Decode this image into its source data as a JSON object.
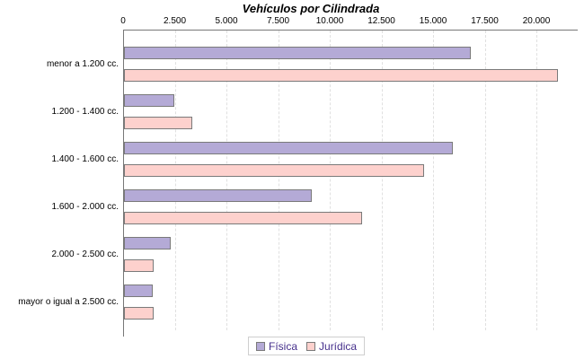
{
  "chart_data": {
    "type": "bar",
    "orientation": "horizontal",
    "title": "Vehículos por Cilindrada",
    "categories": [
      "menor a 1.200 cc.",
      "1.200 - 1.400 cc.",
      "1.400 - 1.600 cc.",
      "1.600 - 2.000 cc.",
      "2.000 - 2.500 cc.",
      "mayor o igual a 2.500 cc."
    ],
    "series": [
      {
        "name": "Física",
        "color": "#b4aad6",
        "values": [
          16800,
          2450,
          15900,
          9100,
          2250,
          1400
        ]
      },
      {
        "name": "Jurídica",
        "color": "#fdd1cd",
        "values": [
          21000,
          3300,
          14500,
          11500,
          1450,
          1450
        ]
      }
    ],
    "x_axis": {
      "position": "top",
      "ticks": [
        0,
        2500,
        5000,
        7500,
        10000,
        12500,
        15000,
        17500,
        20000
      ],
      "tick_labels": [
        "0",
        "2.500",
        "5.000",
        "7.500",
        "10.000",
        "12.500",
        "15.000",
        "17.500",
        "20.000"
      ],
      "xlim": [
        0,
        22000
      ],
      "grid": "dashed-vertical"
    },
    "legend": {
      "position": "bottom"
    },
    "colors": {
      "bar_border": "#7a7a7a",
      "axis": "#777777",
      "gridline": "#e0e0e0",
      "legend_text": "#46308c",
      "title_text": "#000000"
    }
  }
}
